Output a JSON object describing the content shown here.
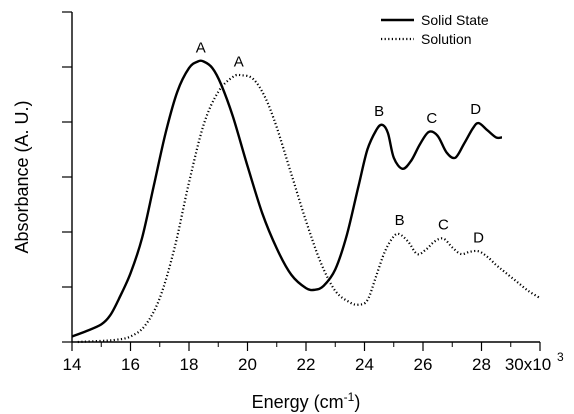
{
  "chart_data": {
    "type": "line",
    "title": "",
    "xlabel": "Energy (cm",
    "xlabel_superscript": "-1",
    "xlabel_suffix": ")",
    "ylabel": "Absorbance (A. U.)",
    "xlim": [
      14,
      30
    ],
    "ylim": [
      0,
      6
    ],
    "x_ticks": [
      14,
      16,
      18,
      20,
      22,
      24,
      26,
      28,
      30
    ],
    "x_tick_labels": [
      "14",
      "16",
      "18",
      "20",
      "22",
      "24",
      "26",
      "28",
      "30x10"
    ],
    "x_tick_exponent": "3",
    "y_ticks": [
      0,
      1,
      2,
      3,
      4,
      5,
      6
    ],
    "y_tick_labels_shown": false,
    "grid": false,
    "legend_position": "top-right",
    "series": [
      {
        "name": "Solid State",
        "style": "solid",
        "color": "#000000",
        "x": [
          14.0,
          14.5,
          15.0,
          15.3,
          15.6,
          16.0,
          16.4,
          16.8,
          17.2,
          17.6,
          18.0,
          18.3,
          18.5,
          18.8,
          19.1,
          19.5,
          20.0,
          20.5,
          21.0,
          21.5,
          22.0,
          22.3,
          22.6,
          23.0,
          23.4,
          23.8,
          24.1,
          24.4,
          24.6,
          24.8,
          25.0,
          25.3,
          25.6,
          25.9,
          26.2,
          26.5,
          26.8,
          27.1,
          27.4,
          27.7,
          27.9,
          28.2,
          28.5,
          28.7
        ],
        "y": [
          0.1,
          0.2,
          0.32,
          0.48,
          0.78,
          1.25,
          1.9,
          2.85,
          3.8,
          4.55,
          4.98,
          5.1,
          5.1,
          4.98,
          4.68,
          4.1,
          3.2,
          2.35,
          1.7,
          1.22,
          0.98,
          0.95,
          1.02,
          1.32,
          1.95,
          2.85,
          3.5,
          3.85,
          3.95,
          3.8,
          3.35,
          3.15,
          3.3,
          3.6,
          3.82,
          3.75,
          3.45,
          3.35,
          3.6,
          3.88,
          3.98,
          3.85,
          3.72,
          3.72
        ]
      },
      {
        "name": "Solution",
        "style": "dotted",
        "color": "#000000",
        "x": [
          14.2,
          15.0,
          15.5,
          16.0,
          16.5,
          17.0,
          17.5,
          18.0,
          18.5,
          19.0,
          19.5,
          19.8,
          20.2,
          20.6,
          21.0,
          21.5,
          22.0,
          22.5,
          23.0,
          23.5,
          23.8,
          24.1,
          24.4,
          24.7,
          25.0,
          25.2,
          25.5,
          25.8,
          26.1,
          26.4,
          26.7,
          27.0,
          27.3,
          27.6,
          27.9,
          28.2,
          28.5,
          28.8,
          29.2,
          29.6,
          30.0
        ],
        "y": [
          0.0,
          0.02,
          0.04,
          0.1,
          0.3,
          0.8,
          1.7,
          2.9,
          3.95,
          4.55,
          4.82,
          4.85,
          4.78,
          4.45,
          3.9,
          3.05,
          2.2,
          1.45,
          0.93,
          0.72,
          0.68,
          0.76,
          1.2,
          1.65,
          1.92,
          1.96,
          1.82,
          1.6,
          1.68,
          1.83,
          1.88,
          1.72,
          1.6,
          1.64,
          1.65,
          1.55,
          1.4,
          1.27,
          1.1,
          0.93,
          0.8
        ]
      }
    ],
    "annotations": [
      {
        "text": "A",
        "series": "Solid State",
        "x": 18.4,
        "y": 5.1
      },
      {
        "text": "A",
        "series": "Solution",
        "x": 19.7,
        "y": 4.85
      },
      {
        "text": "B",
        "series": "Solid State",
        "x": 24.5,
        "y": 3.95
      },
      {
        "text": "C",
        "series": "Solid State",
        "x": 26.3,
        "y": 3.82
      },
      {
        "text": "D",
        "series": "Solid State",
        "x": 27.8,
        "y": 3.98
      },
      {
        "text": "B",
        "series": "Solution",
        "x": 25.2,
        "y": 1.96
      },
      {
        "text": "C",
        "series": "Solution",
        "x": 26.7,
        "y": 1.88
      },
      {
        "text": "D",
        "series": "Solution",
        "x": 27.9,
        "y": 1.65
      }
    ]
  }
}
